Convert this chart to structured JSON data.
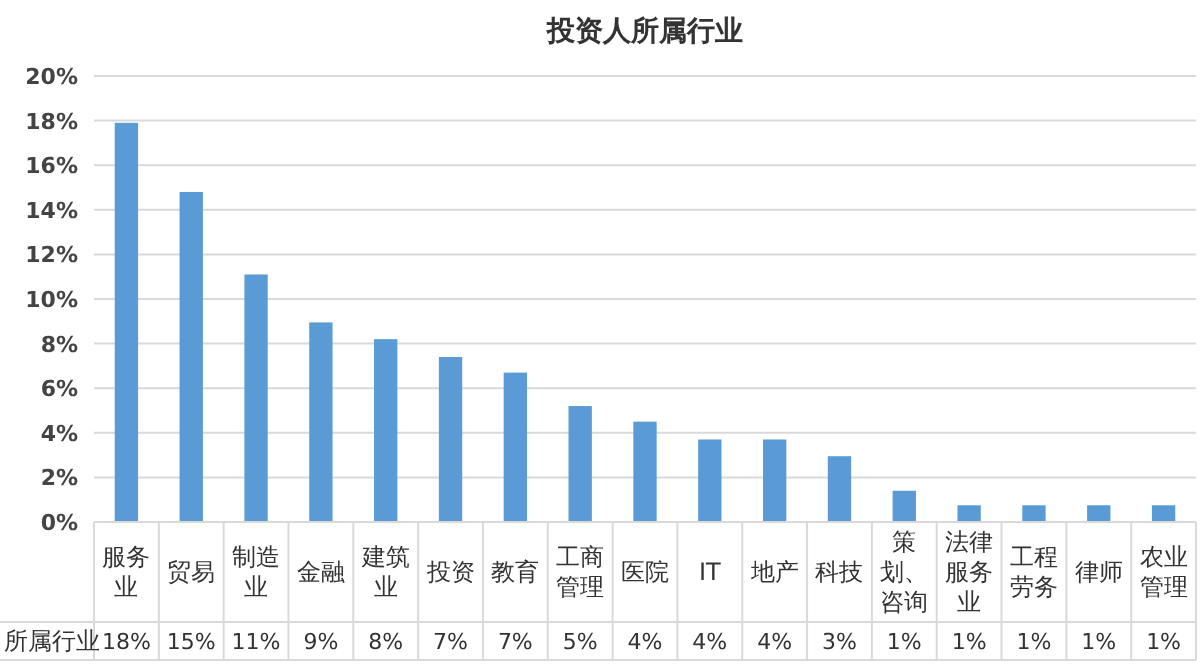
{
  "chart_data": {
    "type": "bar",
    "title": "投资人所属行业",
    "categories": [
      "服务业",
      "贸易",
      "制造业",
      "金融",
      "建筑业",
      "投资",
      "教育",
      "工商管理",
      "医院",
      "IT",
      "地产",
      "科技",
      "策划、咨询",
      "法律服务业",
      "工程劳务",
      "律师",
      "农业管理"
    ],
    "series": [
      {
        "name": "所属行业",
        "color": "#5b9bd5",
        "values": [
          17.9,
          14.8,
          11.1,
          8.95,
          8.2,
          7.4,
          6.7,
          5.2,
          4.5,
          3.7,
          3.7,
          2.95,
          1.4,
          0.75,
          0.75,
          0.75,
          0.75
        ],
        "value_labels": [
          "18%",
          "15%",
          "11%",
          "9%",
          "8%",
          "7%",
          "7%",
          "5%",
          "4%",
          "4%",
          "4%",
          "3%",
          "1%",
          "1%",
          "1%",
          "1%",
          "1%"
        ]
      }
    ],
    "ylim": [
      0,
      20
    ],
    "yticks": [
      {
        "value": 0,
        "label": "0%"
      },
      {
        "value": 2,
        "label": "2%"
      },
      {
        "value": 4,
        "label": "4%"
      },
      {
        "value": 6,
        "label": "6%"
      },
      {
        "value": 8,
        "label": "8%"
      },
      {
        "value": 10,
        "label": "10%"
      },
      {
        "value": 12,
        "label": "12%"
      },
      {
        "value": 14,
        "label": "14%"
      },
      {
        "value": 16,
        "label": "16%"
      },
      {
        "value": 18,
        "label": "18%"
      },
      {
        "value": 20,
        "label": "20%"
      }
    ],
    "grid": "y"
  }
}
